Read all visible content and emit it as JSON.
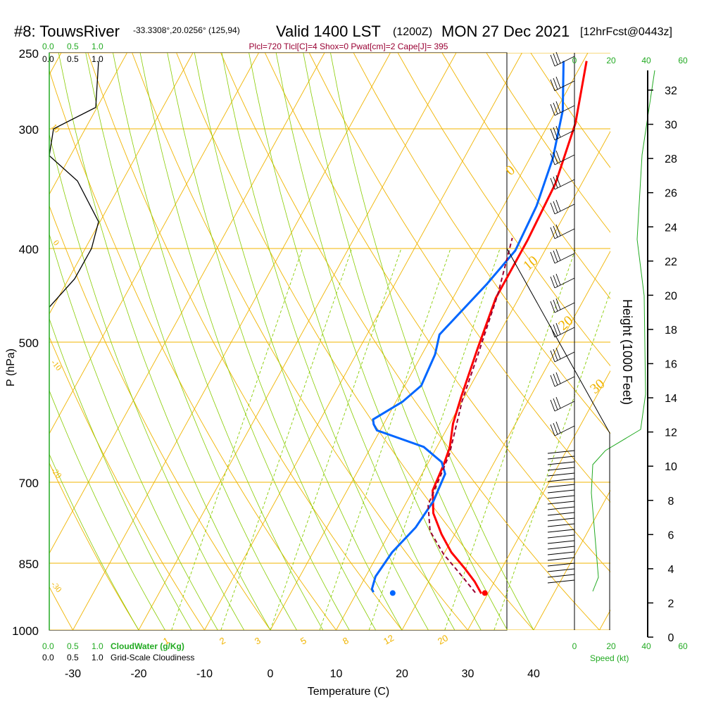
{
  "header": {
    "site": "#8: TouwsRiver",
    "coords": "-33.3308°,20.0256° (125,94)",
    "valid": "Valid 1400 LST",
    "zulu": "(1200Z)",
    "date": "MON 27 Dec 2021",
    "forecast": "[12hrFcst@0443z]",
    "params": "Plcl=720 Tlcl[C]=4 Shox=0 Pwat[cm]=2 Cape[J]= 395"
  },
  "colors": {
    "isotherm": "#f0b400",
    "dry_adiabat": "#f0b400",
    "moist_adiabat": "#88cc00",
    "mixing_ratio": "#88cc00",
    "temperature": "#ff0000",
    "dewpoint": "#0066ff",
    "parcel": "#990033",
    "green_text": "#22aa22",
    "params_text": "#990033"
  },
  "chart_data": {
    "type": "line",
    "xlabel": "Temperature (C)",
    "ylabel": "P (hPa)",
    "right_axis_label": "Height (1000 Feet)",
    "x_ticks": [
      "-30",
      "-20",
      "-10",
      "0",
      "10",
      "20",
      "30",
      "40"
    ],
    "pressure_ticks": [
      "250",
      "300",
      "400",
      "500",
      "700",
      "850",
      "1000"
    ],
    "height_ticks": [
      "0",
      "2",
      "4",
      "6",
      "8",
      "10",
      "12",
      "14",
      "16",
      "18",
      "20",
      "22",
      "24",
      "26",
      "28",
      "30",
      "32"
    ],
    "series": [
      {
        "key": "temperature",
        "points": [
          [
            29,
            915
          ],
          [
            27,
            889
          ],
          [
            24.5,
            862
          ],
          [
            21,
            828
          ],
          [
            18,
            793
          ],
          [
            15,
            754
          ],
          [
            13,
            714
          ],
          [
            12.5,
            670
          ],
          [
            12,
            644
          ],
          [
            10.5,
            608
          ],
          [
            9.5,
            570
          ],
          [
            8,
            509
          ],
          [
            6.5,
            450
          ],
          [
            6.5,
            392
          ],
          [
            6,
            342
          ],
          [
            4,
            296
          ],
          [
            0.5,
            255
          ]
        ]
      },
      {
        "key": "dewpoint",
        "points": [
          [
            12.5,
            912
          ],
          [
            12,
            905
          ],
          [
            11.5,
            878
          ],
          [
            12,
            828
          ],
          [
            13.5,
            780
          ],
          [
            14,
            732
          ],
          [
            13.5,
            686
          ],
          [
            12,
            667
          ],
          [
            8,
            643
          ],
          [
            -0.5,
            618
          ],
          [
            -1.5,
            609
          ],
          [
            -2,
            602
          ],
          [
            1,
            577
          ],
          [
            2.5,
            555
          ],
          [
            2,
            515
          ],
          [
            1,
            491
          ],
          [
            4,
            435
          ],
          [
            5.5,
            402
          ],
          [
            5,
            361
          ],
          [
            3.5,
            322
          ],
          [
            1,
            287
          ],
          [
            -3,
            255
          ]
        ]
      },
      {
        "key": "parcel",
        "points": [
          [
            28,
            913
          ],
          [
            24.5,
            876
          ],
          [
            20,
            832
          ],
          [
            16,
            787
          ],
          [
            13.5,
            739
          ],
          [
            13,
            692
          ],
          [
            12.5,
            654
          ],
          [
            10,
            576
          ],
          [
            8.5,
            514
          ],
          [
            6.5,
            446
          ],
          [
            4,
            390
          ]
        ]
      }
    ],
    "surface_points": [
      {
        "key": "temperature",
        "x": 29.5,
        "p": 914
      },
      {
        "key": "dewpoint",
        "x": 15.5,
        "p": 914
      }
    ],
    "isotherm_labels": [
      "0",
      "10",
      "20",
      "30"
    ],
    "mixing_ratio_labels": [
      "1",
      "2",
      "3",
      "5",
      "8",
      "12",
      "20"
    ],
    "cloud_legend": {
      "cloudwater_title": "CloudWater (g/Kg)",
      "cloudwater_ticks": [
        "0.0",
        "0.5",
        "1.0"
      ],
      "cloudiness_title": "Grid-Scale Cloudiness",
      "cloudiness_ticks": [
        "0.0",
        "0.5",
        "1.0"
      ],
      "left_profile_labels": [
        "-10",
        "-20",
        "-30",
        "0",
        "10"
      ]
    },
    "wind": {
      "label": "Speed (kt)",
      "ticks": [
        "0",
        "20",
        "40",
        "60"
      ]
    }
  }
}
